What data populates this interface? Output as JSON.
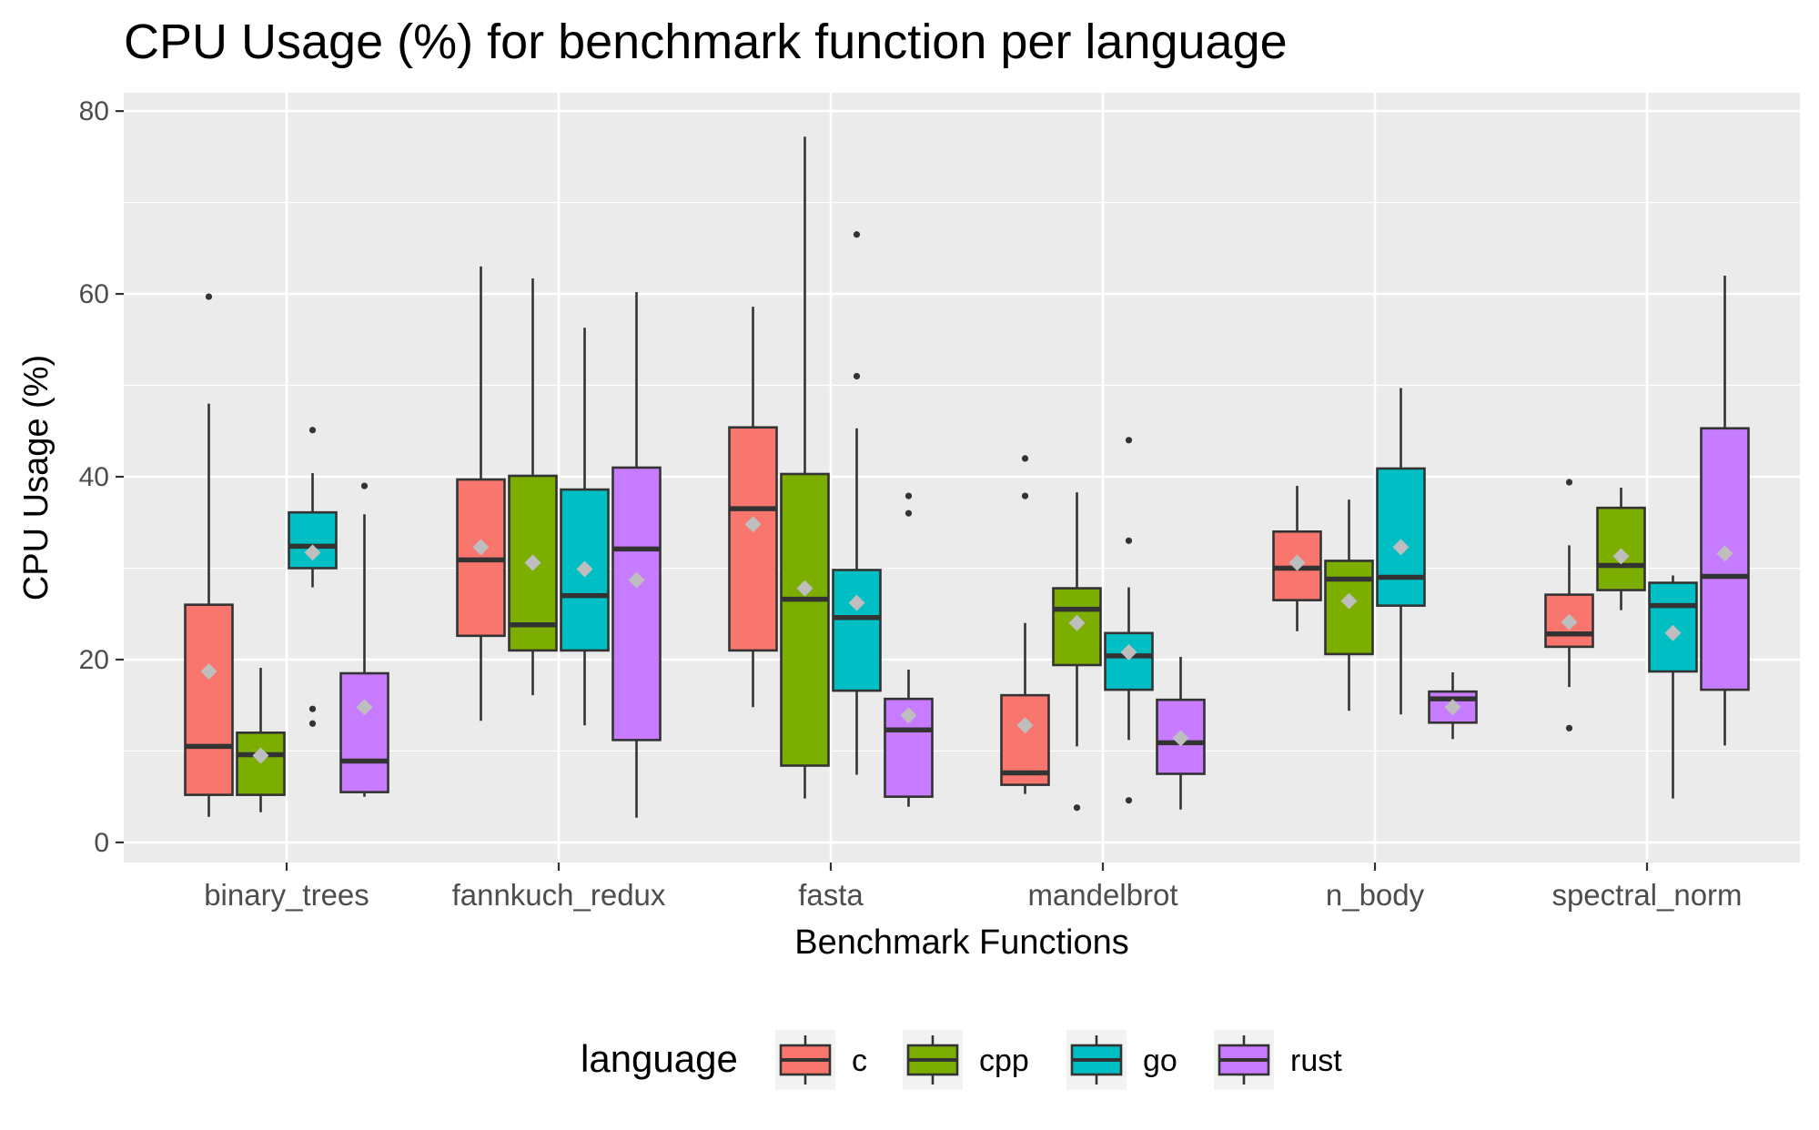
{
  "chart_data": {
    "type": "boxplot",
    "title": "CPU Usage (%) for benchmark function per language",
    "xlabel": "Benchmark Functions",
    "ylabel": "CPU Usage (%)",
    "ylim": [
      0,
      80
    ],
    "yticks": [
      0,
      20,
      40,
      60,
      80
    ],
    "grid": true,
    "legend": {
      "title": "language",
      "placement": "bottom"
    },
    "categories": [
      "binary_trees",
      "fannkuch_redux",
      "fasta",
      "mandelbrot",
      "n_body",
      "spectral_norm"
    ],
    "series": [
      {
        "name": "c",
        "color": "#F8766D",
        "boxes": [
          {
            "min": 2.8,
            "q1": 5.2,
            "median": 10.5,
            "q3": 26.0,
            "max": 48.0,
            "mean": 18.7,
            "outliers": [
              59.7
            ]
          },
          {
            "min": 13.3,
            "q1": 22.6,
            "median": 30.9,
            "q3": 39.7,
            "max": 63.0,
            "mean": 32.3,
            "outliers": []
          },
          {
            "min": 14.8,
            "q1": 21.0,
            "median": 36.5,
            "q3": 45.4,
            "max": 58.6,
            "mean": 34.8,
            "outliers": []
          },
          {
            "min": 5.3,
            "q1": 6.3,
            "median": 7.6,
            "q3": 16.1,
            "max": 24.0,
            "mean": 12.8,
            "outliers": [
              37.9,
              42.0
            ]
          },
          {
            "min": 23.1,
            "q1": 26.5,
            "median": 30.0,
            "q3": 34.0,
            "max": 39.0,
            "mean": 30.6,
            "outliers": []
          },
          {
            "min": 17.0,
            "q1": 21.4,
            "median": 22.8,
            "q3": 27.1,
            "max": 32.5,
            "mean": 24.1,
            "outliers": [
              12.5,
              39.4
            ]
          }
        ]
      },
      {
        "name": "cpp",
        "color": "#7CAE00",
        "boxes": [
          {
            "min": 3.3,
            "q1": 5.2,
            "median": 9.6,
            "q3": 12.0,
            "max": 19.1,
            "mean": 9.5,
            "outliers": []
          },
          {
            "min": 16.1,
            "q1": 21.0,
            "median": 23.8,
            "q3": 40.1,
            "max": 61.7,
            "mean": 30.6,
            "outliers": []
          },
          {
            "min": 4.8,
            "q1": 8.4,
            "median": 26.6,
            "q3": 40.3,
            "max": 77.2,
            "mean": 27.8,
            "outliers": []
          },
          {
            "min": 10.5,
            "q1": 19.4,
            "median": 25.5,
            "q3": 27.8,
            "max": 38.3,
            "mean": 24.0,
            "outliers": [
              3.8
            ]
          },
          {
            "min": 14.4,
            "q1": 20.6,
            "median": 28.8,
            "q3": 30.8,
            "max": 37.5,
            "mean": 26.4,
            "outliers": []
          },
          {
            "min": 25.4,
            "q1": 27.6,
            "median": 30.3,
            "q3": 36.6,
            "max": 38.8,
            "mean": 31.3,
            "outliers": []
          }
        ]
      },
      {
        "name": "go",
        "color": "#00BFC4",
        "boxes": [
          {
            "min": 27.9,
            "q1": 30.0,
            "median": 32.4,
            "q3": 36.1,
            "max": 40.4,
            "mean": 31.7,
            "outliers": [
              13.0,
              14.6,
              45.1
            ]
          },
          {
            "min": 12.8,
            "q1": 21.0,
            "median": 27.0,
            "q3": 38.6,
            "max": 56.3,
            "mean": 29.9,
            "outliers": []
          },
          {
            "min": 7.4,
            "q1": 16.6,
            "median": 24.6,
            "q3": 29.8,
            "max": 45.3,
            "mean": 26.2,
            "outliers": [
              51.0,
              66.5
            ]
          },
          {
            "min": 11.2,
            "q1": 16.7,
            "median": 20.4,
            "q3": 22.9,
            "max": 27.9,
            "mean": 20.8,
            "outliers": [
              4.6,
              33.0,
              44.0
            ]
          },
          {
            "min": 14.0,
            "q1": 25.9,
            "median": 29.0,
            "q3": 40.9,
            "max": 49.7,
            "mean": 32.3,
            "outliers": []
          },
          {
            "min": 4.8,
            "q1": 18.7,
            "median": 25.9,
            "q3": 28.4,
            "max": 29.2,
            "mean": 22.9,
            "outliers": []
          }
        ]
      },
      {
        "name": "rust",
        "color": "#C77CFF",
        "boxes": [
          {
            "min": 5.0,
            "q1": 5.5,
            "median": 8.9,
            "q3": 18.5,
            "max": 35.9,
            "mean": 14.8,
            "outliers": [
              39.0
            ]
          },
          {
            "min": 2.7,
            "q1": 11.2,
            "median": 32.1,
            "q3": 41.0,
            "max": 60.2,
            "mean": 28.7,
            "outliers": []
          },
          {
            "min": 3.9,
            "q1": 5.0,
            "median": 12.3,
            "q3": 15.7,
            "max": 18.9,
            "mean": 13.9,
            "outliers": [
              36.0,
              37.9
            ]
          },
          {
            "min": 3.6,
            "q1": 7.5,
            "median": 10.9,
            "q3": 15.6,
            "max": 20.3,
            "mean": 11.4,
            "outliers": []
          },
          {
            "min": 11.3,
            "q1": 13.1,
            "median": 15.7,
            "q3": 16.5,
            "max": 18.6,
            "mean": 14.8,
            "outliers": []
          },
          {
            "min": 10.6,
            "q1": 16.7,
            "median": 29.1,
            "q3": 45.3,
            "max": 62.0,
            "mean": 31.6,
            "outliers": []
          }
        ]
      }
    ]
  }
}
